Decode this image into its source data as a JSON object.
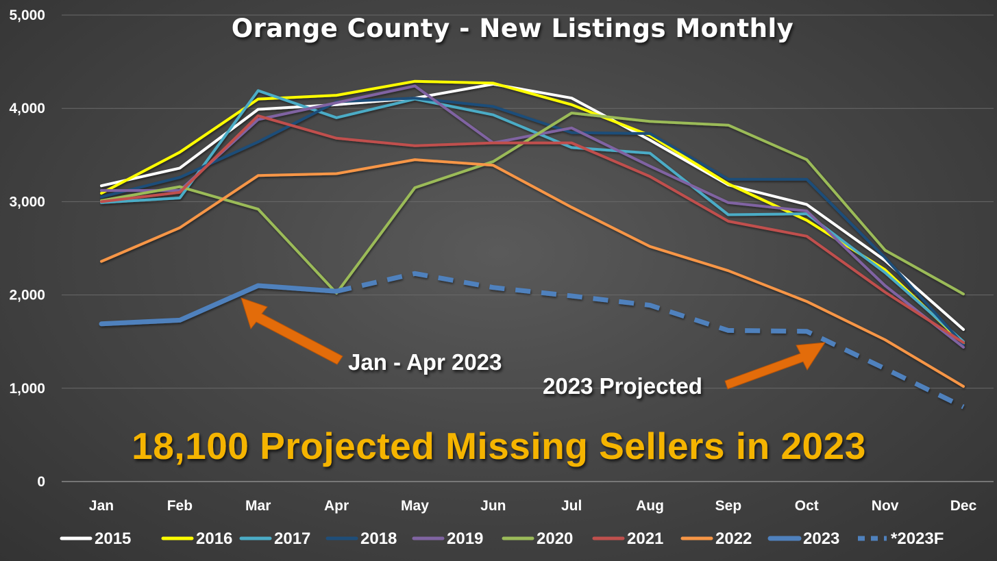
{
  "chart_data": {
    "type": "line",
    "title": "Orange County - New Listings Monthly",
    "categories": [
      "Jan",
      "Feb",
      "Mar",
      "Apr",
      "May",
      "Jun",
      "Jul",
      "Aug",
      "Sep",
      "Oct",
      "Nov",
      "Dec"
    ],
    "ylim": [
      0,
      5000
    ],
    "yticks": [
      0,
      1000,
      2000,
      3000,
      4000,
      5000
    ],
    "ytick_labels": [
      "0",
      "1,000",
      "2,000",
      "3,000",
      "4,000",
      "5,000"
    ],
    "grid": true,
    "legend_position": "bottom",
    "series": [
      {
        "name": "2015",
        "color": "#ffffff",
        "style": "solid",
        "values": [
          3170,
          3360,
          3990,
          4040,
          4110,
          4260,
          4110,
          3660,
          3180,
          2970,
          2370,
          1630
        ]
      },
      {
        "name": "2016",
        "color": "#ffff00",
        "style": "solid",
        "values": [
          3090,
          3530,
          4100,
          4140,
          4290,
          4270,
          4040,
          3710,
          3190,
          2800,
          2270,
          1480
        ]
      },
      {
        "name": "2017",
        "color": "#4bacc6",
        "style": "solid",
        "values": [
          2990,
          3040,
          4190,
          3900,
          4100,
          3930,
          3580,
          3520,
          2860,
          2870,
          2240,
          1500
        ]
      },
      {
        "name": "2018",
        "color": "#1f4e79",
        "style": "solid",
        "values": [
          3050,
          3260,
          3640,
          4070,
          4110,
          4020,
          3740,
          3730,
          3240,
          3240,
          2400,
          1470
        ]
      },
      {
        "name": "2019",
        "color": "#8064a2",
        "style": "solid",
        "values": [
          3120,
          3120,
          3880,
          4060,
          4240,
          3630,
          3790,
          3380,
          2990,
          2900,
          2100,
          1440
        ]
      },
      {
        "name": "2020",
        "color": "#9bbb59",
        "style": "solid",
        "values": [
          3010,
          3160,
          2920,
          2020,
          3150,
          3430,
          3950,
          3860,
          3820,
          3450,
          2480,
          2010
        ]
      },
      {
        "name": "2021",
        "color": "#c0504d",
        "style": "solid",
        "values": [
          3000,
          3100,
          3920,
          3680,
          3600,
          3630,
          3630,
          3270,
          2790,
          2630,
          2030,
          1490
        ]
      },
      {
        "name": "2022",
        "color": "#f79646",
        "style": "solid",
        "values": [
          2360,
          2720,
          3280,
          3300,
          3450,
          3390,
          2940,
          2520,
          2260,
          1930,
          1520,
          1020
        ]
      },
      {
        "name": "2023",
        "color": "#4f81bd",
        "style": "solid",
        "values": [
          1690,
          1730,
          2100,
          2040,
          null,
          null,
          null,
          null,
          null,
          null,
          null,
          null
        ]
      },
      {
        "name": "*2023F",
        "color": "#4f81bd",
        "style": "dashed",
        "values": [
          null,
          null,
          null,
          2040,
          2230,
          2080,
          1990,
          1890,
          1620,
          1610,
          1210,
          800
        ]
      }
    ],
    "annotations": [
      {
        "text": "Jan - Apr 2023",
        "points_to": {
          "x": "Mar",
          "y": 2100
        }
      },
      {
        "text": "2023 Projected",
        "points_to": {
          "x": "Oct",
          "y": 1610
        }
      },
      {
        "text": "18,100 Projected Missing Sellers in 2023"
      }
    ]
  }
}
